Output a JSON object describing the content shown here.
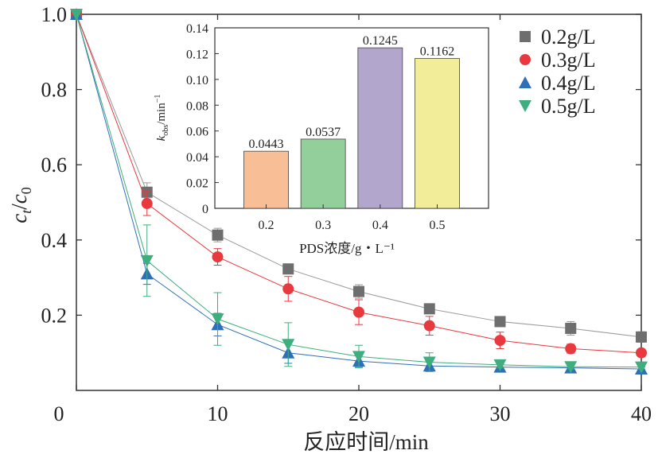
{
  "chart_data": [
    {
      "type": "line",
      "xlabel": "反应时间/min",
      "ylabel": {
        "base1": "c",
        "sub1": "t",
        "slash": "/",
        "base2": "c",
        "sub2": "0"
      },
      "xlim": [
        0,
        40
      ],
      "ylim": [
        0,
        1.0
      ],
      "x_ticks": [
        "0",
        "10",
        "20",
        "30",
        "40"
      ],
      "y_ticks": [
        "0.2",
        "0.4",
        "0.6",
        "0.8",
        "1.0"
      ],
      "x_tick_values": [
        0,
        10,
        20,
        30,
        40
      ],
      "y_tick_values": [
        0.2,
        0.4,
        0.6,
        0.8,
        1.0
      ],
      "grid": false,
      "legend_position": "top-right",
      "x": [
        0,
        5,
        10,
        15,
        20,
        25,
        30,
        35,
        40
      ],
      "series": [
        {
          "name": "0.2g/L",
          "marker": "square",
          "color": "#6e6e6e",
          "line_color": "#9a9a9a",
          "values": [
            1.0,
            0.527,
            0.413,
            0.323,
            0.263,
            0.217,
            0.183,
            0.165,
            0.142
          ],
          "errors": [
            0,
            0.025,
            0.018,
            0.012,
            0.018,
            0.012,
            0.008,
            0.018,
            0.014
          ]
        },
        {
          "name": "0.3g/L",
          "marker": "circle",
          "color": "#e8393f",
          "line_color": "#e8393f",
          "values": [
            1.0,
            0.497,
            0.355,
            0.27,
            0.208,
            0.172,
            0.133,
            0.111,
            0.1
          ],
          "errors": [
            0,
            0.032,
            0.022,
            0.033,
            0.033,
            0.025,
            0.022,
            0.012,
            0.01
          ]
        },
        {
          "name": "0.4g/L",
          "marker": "triangle-up",
          "color": "#2f6fb8",
          "line_color": "#2f6fb8",
          "values": [
            1.0,
            0.31,
            0.175,
            0.1,
            0.078,
            0.065,
            0.062,
            0.06,
            0.057
          ],
          "errors": [
            0,
            0.028,
            0.03,
            0.028,
            0.015,
            0.01,
            0.008,
            0.008,
            0.005
          ]
        },
        {
          "name": "0.5g/L",
          "marker": "triangle-down",
          "color": "#3fae7e",
          "line_color": "#3fae7e",
          "values": [
            1.0,
            0.345,
            0.19,
            0.122,
            0.09,
            0.075,
            0.068,
            0.063,
            0.062
          ],
          "errors": [
            0,
            0.095,
            0.07,
            0.058,
            0.03,
            0.025,
            0.008,
            0.006,
            0.005
          ]
        }
      ]
    },
    {
      "type": "bar",
      "inset": true,
      "xlabel": "PDS浓度/g・L⁻¹",
      "ylabel": {
        "base": "k",
        "sub": "obs",
        "rest": "/min",
        "sup": "−1"
      },
      "ylim": [
        0,
        0.14
      ],
      "y_ticks": [
        "0",
        "0.02",
        "0.04",
        "0.06",
        "0.08",
        "0.10",
        "0.12",
        "0.14"
      ],
      "y_tick_values": [
        0,
        0.02,
        0.04,
        0.06,
        0.08,
        0.1,
        0.12,
        0.14
      ],
      "categories": [
        "0.2",
        "0.3",
        "0.4",
        "0.5"
      ],
      "values": [
        0.0443,
        0.0537,
        0.1245,
        0.1162
      ],
      "value_labels": [
        "0.0443",
        "0.0537",
        "0.1245",
        "0.1162"
      ],
      "colors": [
        "#f8bf97",
        "#93cf9b",
        "#b3a6cd",
        "#f1ed98"
      ]
    }
  ]
}
